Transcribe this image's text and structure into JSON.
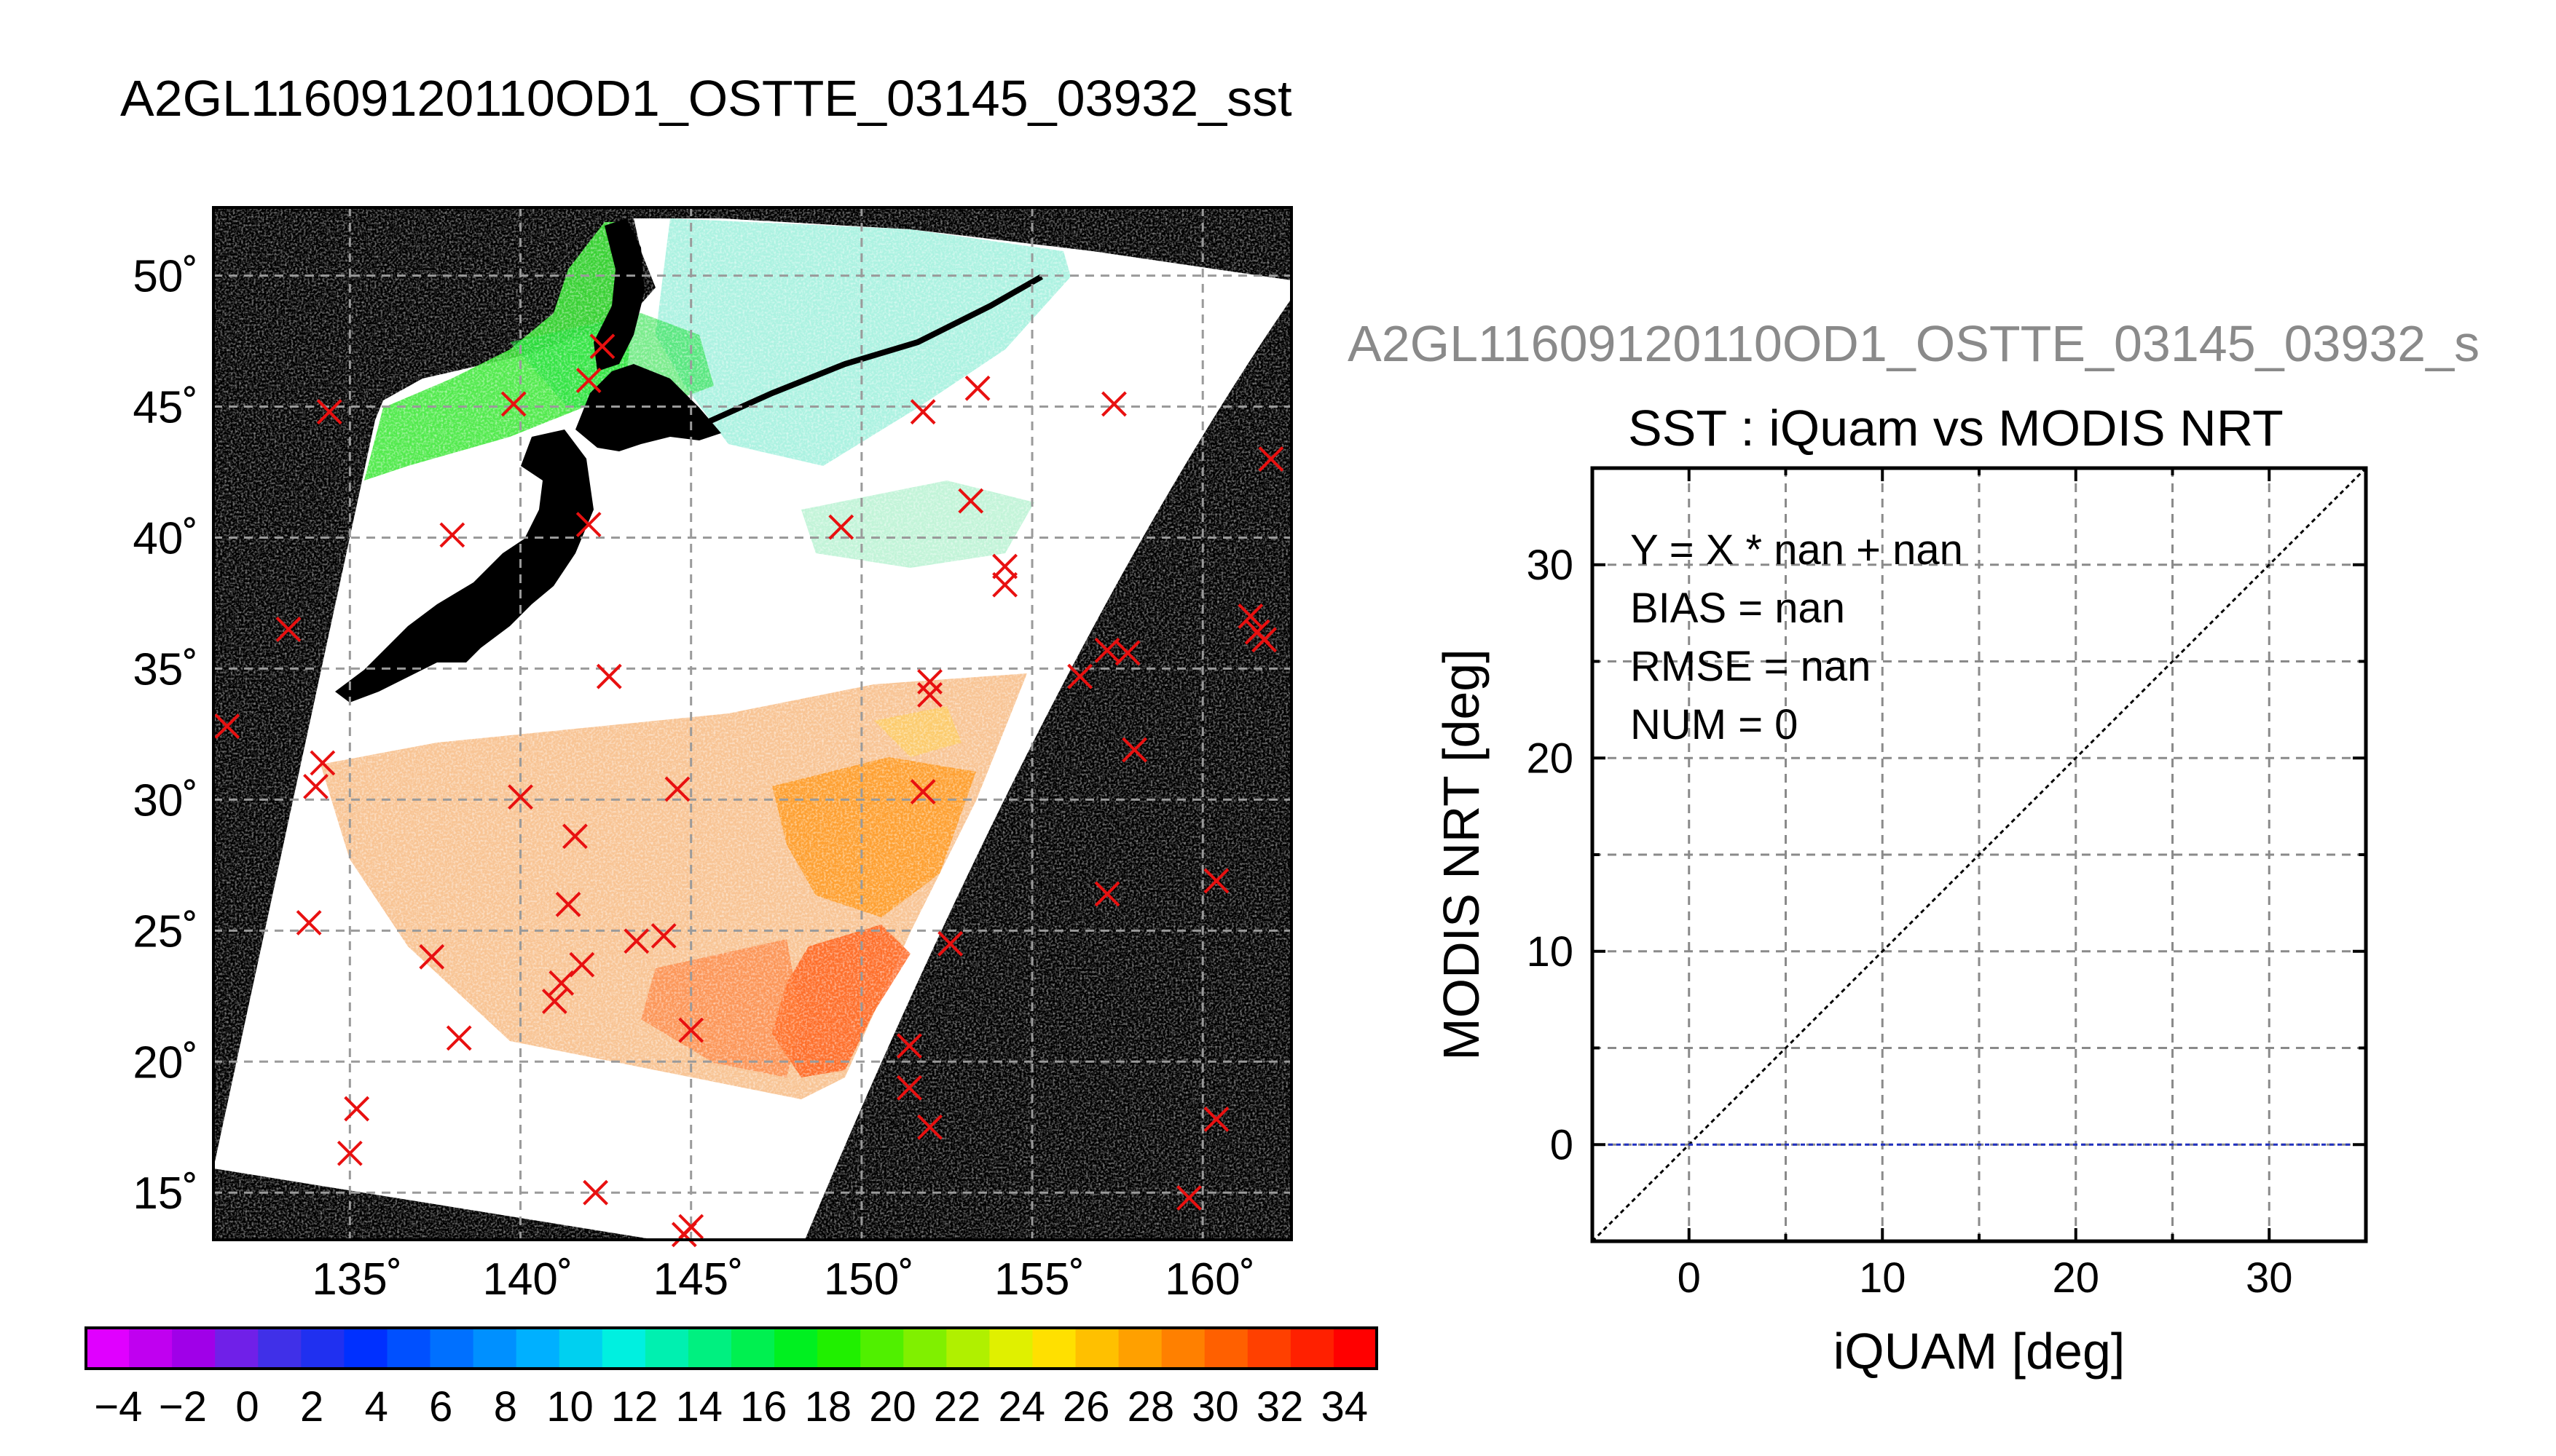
{
  "title": "A2GL11609120110OD1_OSTTE_03145_03932_sst",
  "right_title": "A2GL11609120110OD1_OSTTE_03145_03932_s",
  "map": {
    "lat_ticks": [
      "50˚",
      "45˚",
      "40˚",
      "35˚",
      "30˚",
      "25˚",
      "20˚",
      "15˚"
    ],
    "lon_ticks": [
      "135˚",
      "140˚",
      "145˚",
      "150˚",
      "155˚",
      "160˚"
    ],
    "lat_range": [
      13.2,
      52.6
    ],
    "lon_range": [
      131.0,
      162.6
    ],
    "marker_color": "#e81010",
    "markers": [
      [
        134.4,
        44.8
      ],
      [
        139.8,
        45.1
      ],
      [
        142.4,
        47.3
      ],
      [
        142.0,
        46.0
      ],
      [
        151.8,
        44.8
      ],
      [
        153.4,
        45.7
      ],
      [
        157.4,
        45.1
      ],
      [
        162.0,
        43.0
      ],
      [
        138.0,
        40.1
      ],
      [
        142.0,
        40.5
      ],
      [
        149.4,
        40.4
      ],
      [
        153.2,
        41.4
      ],
      [
        154.2,
        38.9
      ],
      [
        154.2,
        38.2
      ],
      [
        133.2,
        36.5
      ],
      [
        142.6,
        34.7
      ],
      [
        152.0,
        34.5
      ],
      [
        152.0,
        34.0
      ],
      [
        156.4,
        34.7
      ],
      [
        157.2,
        35.7
      ],
      [
        157.8,
        35.6
      ],
      [
        161.4,
        37.0
      ],
      [
        161.6,
        36.4
      ],
      [
        161.8,
        36.1
      ],
      [
        131.4,
        32.8
      ],
      [
        134.2,
        31.4
      ],
      [
        134.0,
        30.5
      ],
      [
        140.0,
        30.1
      ],
      [
        141.6,
        28.6
      ],
      [
        141.4,
        26.0
      ],
      [
        144.6,
        30.4
      ],
      [
        151.8,
        30.3
      ],
      [
        158.0,
        31.9
      ],
      [
        133.8,
        25.3
      ],
      [
        137.4,
        24.0
      ],
      [
        141.2,
        23.0
      ],
      [
        141.0,
        22.3
      ],
      [
        141.8,
        23.7
      ],
      [
        143.4,
        24.6
      ],
      [
        144.2,
        24.8
      ],
      [
        145.0,
        21.2
      ],
      [
        152.6,
        24.5
      ],
      [
        157.2,
        26.4
      ],
      [
        160.4,
        26.9
      ],
      [
        138.2,
        20.9
      ],
      [
        135.2,
        18.2
      ],
      [
        135.0,
        16.5
      ],
      [
        142.2,
        15.0
      ],
      [
        151.4,
        20.6
      ],
      [
        151.4,
        19.0
      ],
      [
        152.0,
        17.5
      ],
      [
        160.4,
        17.8
      ],
      [
        159.6,
        14.8
      ],
      [
        145.0,
        13.7
      ],
      [
        144.8,
        13.4
      ]
    ]
  },
  "colorbar": {
    "tick_labels": [
      "−4",
      "−2",
      "0",
      "2",
      "4",
      "6",
      "8",
      "10",
      "12",
      "14",
      "16",
      "18",
      "20",
      "22",
      "24",
      "26",
      "28",
      "30",
      "32",
      "34"
    ],
    "range": [
      -5,
      35
    ],
    "colors": [
      "#e000ff",
      "#c000f0",
      "#a000e8",
      "#7020e8",
      "#4030e8",
      "#2030f0",
      "#0030ff",
      "#0050ff",
      "#0070ff",
      "#0090ff",
      "#00b0ff",
      "#00d0f0",
      "#00f0e0",
      "#00f0b0",
      "#00f080",
      "#00f050",
      "#00f020",
      "#20f000",
      "#50f000",
      "#80f000",
      "#b0f000",
      "#e0f000",
      "#ffe000",
      "#ffc000",
      "#ffa000",
      "#ff8000",
      "#ff6000",
      "#ff4000",
      "#ff2000",
      "#ff0000"
    ]
  },
  "chart_data": {
    "type": "scatter",
    "title": "SST : iQuam vs MODIS NRT",
    "xlabel": "iQUAM [deg]",
    "ylabel": "MODIS NRT [deg]",
    "xlim": [
      -5,
      35
    ],
    "ylim": [
      -5,
      35
    ],
    "x_ticks": [
      0,
      10,
      20,
      30
    ],
    "y_ticks": [
      0,
      10,
      20,
      30
    ],
    "grid": true,
    "points": [],
    "reference_lines": [
      {
        "type": "one-to-one",
        "y_equals_x": true,
        "color": "#000000"
      },
      {
        "type": "horizontal",
        "y": 0,
        "color": "#2030c0"
      }
    ],
    "annotations": [
      "Y = X * nan + nan",
      "BIAS = nan",
      "RMSE = nan",
      "NUM = 0"
    ]
  }
}
